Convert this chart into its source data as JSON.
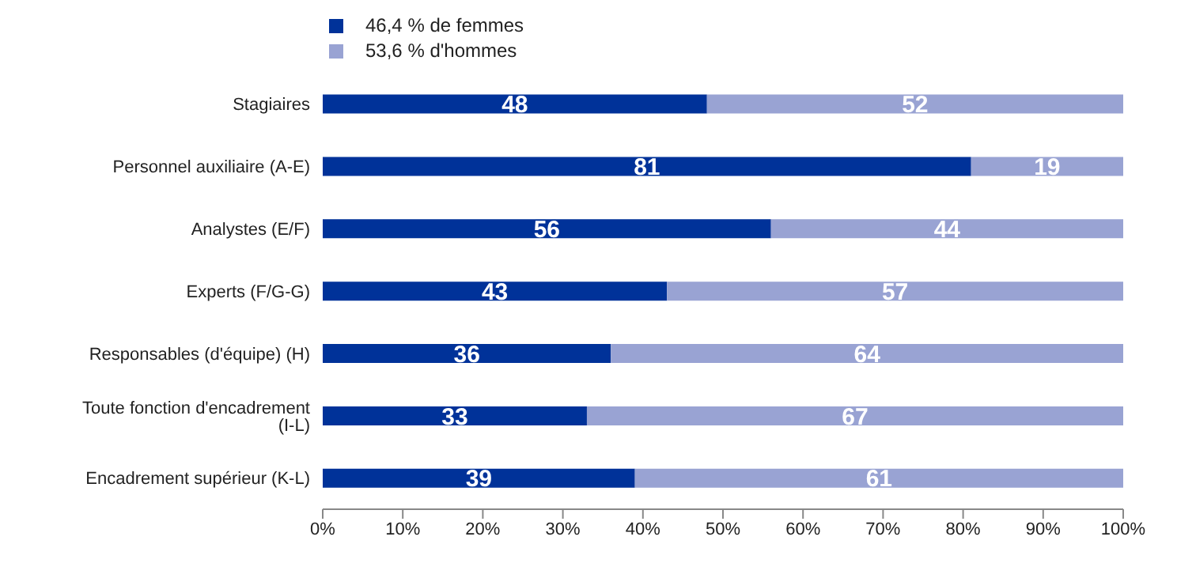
{
  "chart_data": {
    "type": "bar",
    "orientation": "horizontal",
    "stacked": true,
    "categories": [
      "Stagiaires",
      "Personnel auxiliaire (A-E)",
      "Analystes (E/F)",
      "Experts (F/G-G)",
      "Responsables (d'équipe) (H)",
      "Toute fonction d'encadrement (I-L)",
      "Encadrement supérieur (K-L)"
    ],
    "series": [
      {
        "name": "46,4 % de femmes",
        "color": "#003299",
        "values": [
          48,
          81,
          56,
          43,
          36,
          33,
          39
        ]
      },
      {
        "name": "53,6 % d'hommes",
        "color": "#99a3d3",
        "values": [
          52,
          19,
          44,
          57,
          64,
          67,
          61
        ]
      }
    ],
    "xlim": [
      0,
      100
    ],
    "xticks": [
      {
        "value": 0,
        "label": "0%"
      },
      {
        "value": 10,
        "label": "10%"
      },
      {
        "value": 20,
        "label": "20%"
      },
      {
        "value": 30,
        "label": "30%"
      },
      {
        "value": 40,
        "label": "40%"
      },
      {
        "value": 50,
        "label": "50%"
      },
      {
        "value": 60,
        "label": "60%"
      },
      {
        "value": 70,
        "label": "70%"
      },
      {
        "value": 80,
        "label": "80%"
      },
      {
        "value": 90,
        "label": "90%"
      },
      {
        "value": 100,
        "label": "100%"
      }
    ],
    "data_labels": true,
    "grid": false,
    "legend": "top left"
  }
}
